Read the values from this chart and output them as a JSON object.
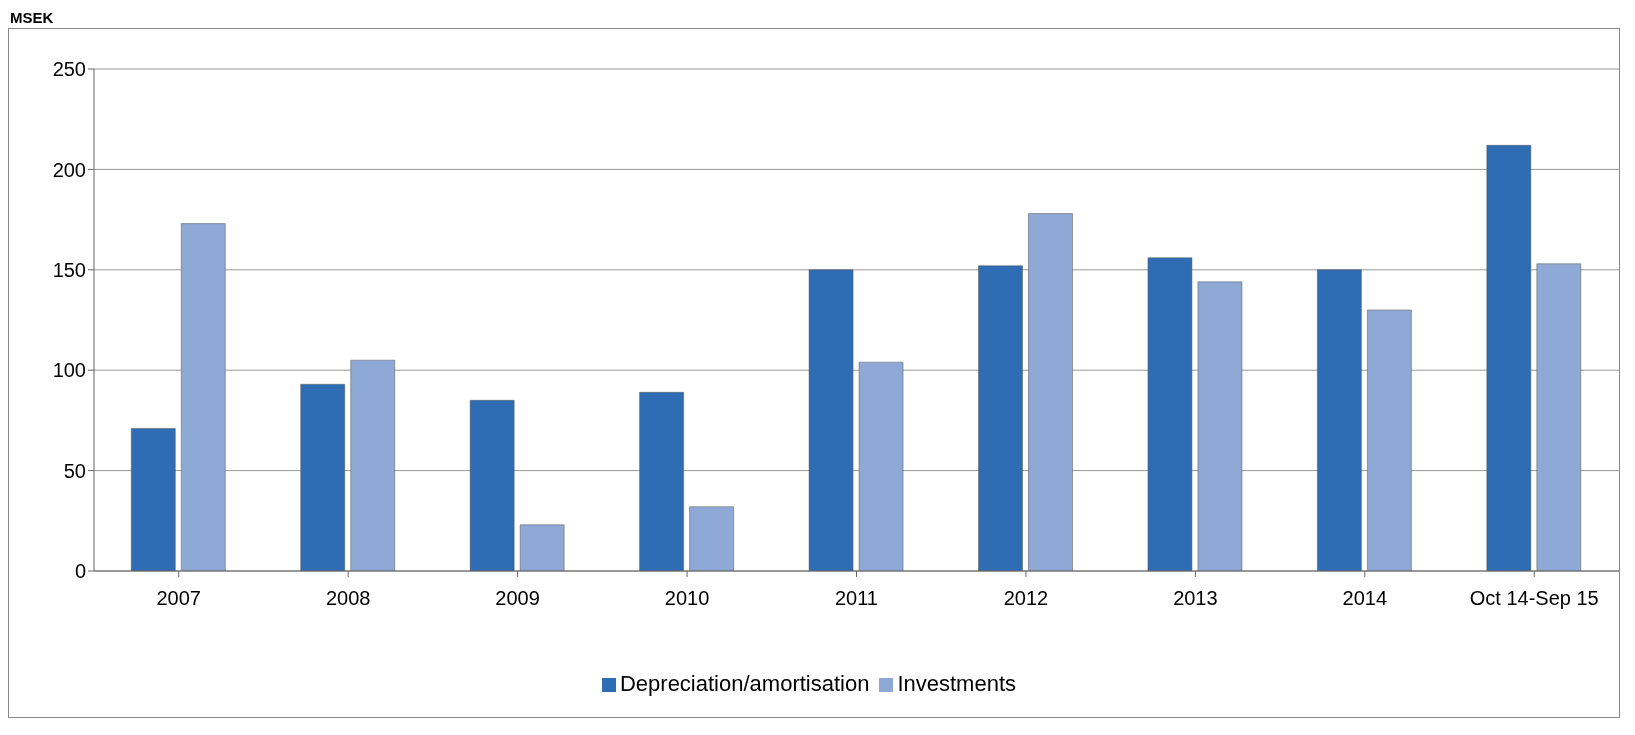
{
  "chart_data": {
    "type": "bar",
    "ylabel": "MSEK",
    "categories": [
      "2007",
      "2008",
      "2009",
      "2010",
      "2011",
      "2012",
      "2013",
      "2014",
      "Oct 14-Sep 15"
    ],
    "series": [
      {
        "name": "Depreciation/amortisation",
        "color": "#2e6db4",
        "values": [
          71,
          93,
          85,
          89,
          150,
          152,
          156,
          150,
          212
        ]
      },
      {
        "name": "Investments",
        "color": "#8fa9d6",
        "values": [
          173,
          105,
          23,
          32,
          104,
          178,
          144,
          130,
          153
        ]
      }
    ],
    "ylim": [
      0,
      250
    ],
    "yticks": [
      0,
      50,
      100,
      150,
      200,
      250
    ],
    "grid": "y",
    "legend": "bottom"
  }
}
